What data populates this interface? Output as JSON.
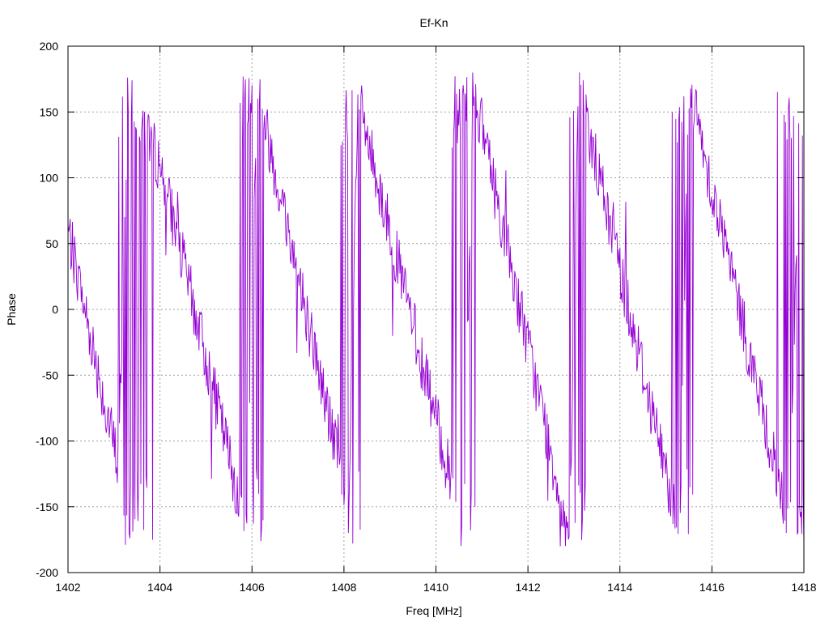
{
  "chart_data": {
    "type": "line",
    "title": "Ef-Kn",
    "xlabel": "Freq [MHz]",
    "ylabel": "Phase",
    "xlim": [
      1402,
      1418
    ],
    "ylim": [
      -200,
      200
    ],
    "xticks": [
      1402,
      1404,
      1406,
      1408,
      1410,
      1412,
      1414,
      1416,
      1418
    ],
    "yticks": [
      200,
      150,
      100,
      50,
      0,
      -50,
      -100,
      -150,
      -200
    ],
    "grid": true,
    "legend": "none",
    "series": [
      {
        "color": "#9400d3",
        "x_start": 1402,
        "x_end": 1418,
        "trend_breakpoints": [
          [
            1402.0,
            60
          ],
          [
            1403.1,
            -120
          ],
          [
            1403.3,
            170
          ],
          [
            1404.0,
            110
          ],
          [
            1405.9,
            -170
          ],
          [
            1406.1,
            170
          ],
          [
            1408.1,
            -150
          ],
          [
            1408.3,
            160
          ],
          [
            1410.6,
            -170
          ],
          [
            1410.8,
            170
          ],
          [
            1412.9,
            -175
          ],
          [
            1413.1,
            170
          ],
          [
            1415.3,
            -170
          ],
          [
            1415.5,
            170
          ],
          [
            1417.7,
            -170
          ],
          [
            1417.9,
            160
          ],
          [
            1418.0,
            150
          ]
        ],
        "wrap_bands": [
          [
            1403.1,
            1403.9
          ],
          [
            1405.7,
            1406.25
          ],
          [
            1407.9,
            1408.4
          ],
          [
            1410.35,
            1410.85
          ],
          [
            1412.9,
            1413.3
          ],
          [
            1415.1,
            1415.6
          ],
          [
            1417.4,
            1418.0
          ]
        ]
      }
    ]
  }
}
